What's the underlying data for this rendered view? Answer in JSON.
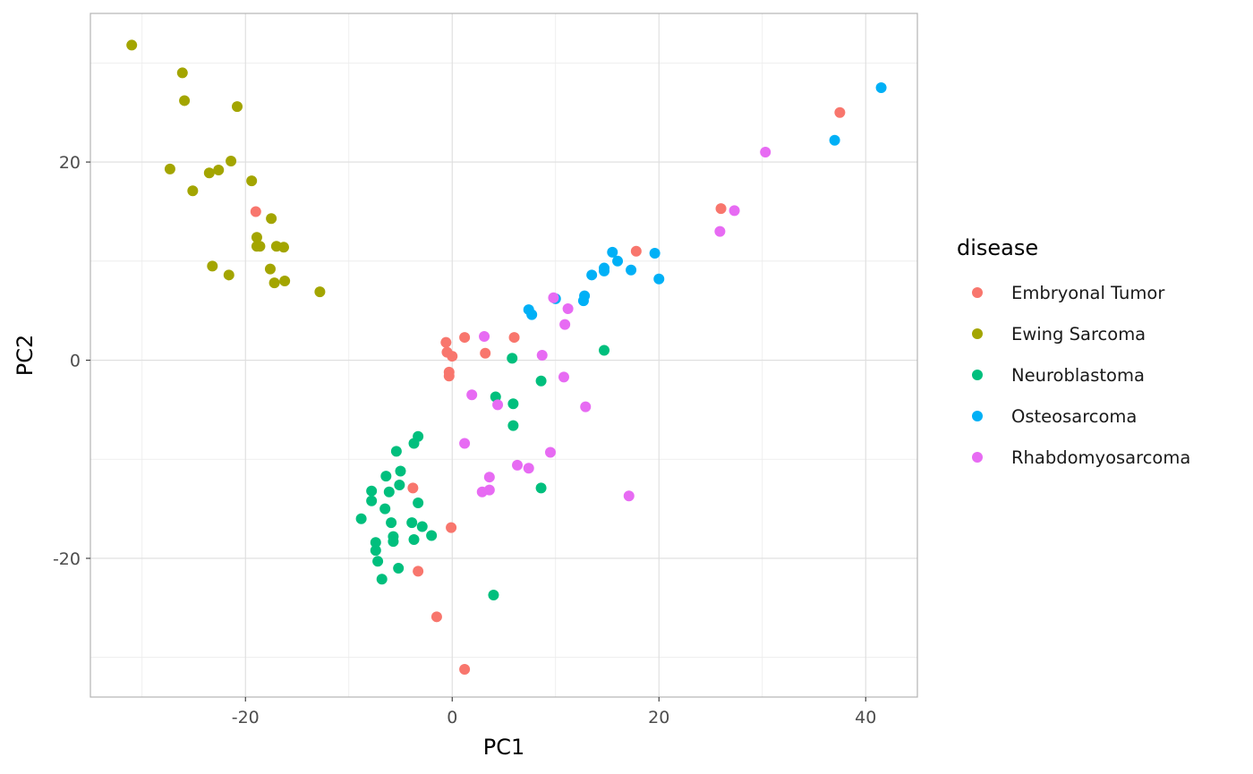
{
  "chart_data": {
    "type": "scatter",
    "xlabel": "PC1",
    "ylabel": "PC2",
    "xlim": [
      -35,
      45
    ],
    "ylim": [
      -34,
      35
    ],
    "x_ticks": [
      -20,
      0,
      20,
      40
    ],
    "y_ticks": [
      -20,
      0,
      20
    ],
    "x_tick_labels": [
      "-20",
      "0",
      "20",
      "40"
    ],
    "y_tick_labels": [
      "-20",
      "0",
      "20"
    ],
    "grid": true,
    "legend": {
      "title": "disease",
      "placement": "right"
    },
    "series": [
      {
        "name": "Embryonal Tumor",
        "color": "#F8766D",
        "points": [
          [
            37.5,
            25.0
          ],
          [
            26.0,
            15.3
          ],
          [
            17.8,
            11.0
          ],
          [
            -19.0,
            15.0
          ],
          [
            1.2,
            2.3
          ],
          [
            6.0,
            2.3
          ],
          [
            -0.6,
            1.8
          ],
          [
            -0.5,
            0.8
          ],
          [
            0.0,
            0.4
          ],
          [
            3.2,
            0.7
          ],
          [
            -0.3,
            -1.2
          ],
          [
            -0.3,
            -1.6
          ],
          [
            -3.8,
            -12.9
          ],
          [
            -0.1,
            -16.9
          ],
          [
            -3.3,
            -21.3
          ],
          [
            -1.5,
            -25.9
          ],
          [
            1.2,
            -31.2
          ]
        ]
      },
      {
        "name": "Ewing Sarcoma",
        "color": "#A3A500",
        "points": [
          [
            -31.0,
            31.8
          ],
          [
            -26.1,
            29.0
          ],
          [
            -25.9,
            26.2
          ],
          [
            -20.8,
            25.6
          ],
          [
            -27.3,
            19.3
          ],
          [
            -22.6,
            19.2
          ],
          [
            -23.5,
            18.9
          ],
          [
            -21.4,
            20.1
          ],
          [
            -25.1,
            17.1
          ],
          [
            -19.4,
            18.1
          ],
          [
            -17.5,
            14.3
          ],
          [
            -18.9,
            12.4
          ],
          [
            -18.9,
            11.5
          ],
          [
            -18.6,
            11.5
          ],
          [
            -17.0,
            11.5
          ],
          [
            -16.3,
            11.4
          ],
          [
            -23.2,
            9.5
          ],
          [
            -17.6,
            9.2
          ],
          [
            -21.6,
            8.6
          ],
          [
            -17.2,
            7.8
          ],
          [
            -16.2,
            8.0
          ],
          [
            -12.8,
            6.9
          ]
        ]
      },
      {
        "name": "Neuroblastoma",
        "color": "#00BF7D",
        "points": [
          [
            14.7,
            1.0
          ],
          [
            5.8,
            0.2
          ],
          [
            8.6,
            -2.1
          ],
          [
            4.2,
            -3.7
          ],
          [
            5.9,
            -4.4
          ],
          [
            5.9,
            -6.6
          ],
          [
            -3.3,
            -7.7
          ],
          [
            -3.7,
            -8.4
          ],
          [
            -5.4,
            -9.2
          ],
          [
            -5.0,
            -11.2
          ],
          [
            -6.4,
            -11.7
          ],
          [
            -5.1,
            -12.6
          ],
          [
            -7.8,
            -13.2
          ],
          [
            -6.1,
            -13.3
          ],
          [
            -7.8,
            -14.2
          ],
          [
            -3.3,
            -14.4
          ],
          [
            -6.5,
            -15.0
          ],
          [
            -8.8,
            -16.0
          ],
          [
            -5.9,
            -16.4
          ],
          [
            -3.9,
            -16.4
          ],
          [
            -2.9,
            -16.8
          ],
          [
            -2.0,
            -17.7
          ],
          [
            -5.7,
            -17.8
          ],
          [
            -5.7,
            -18.3
          ],
          [
            -3.7,
            -18.1
          ],
          [
            -7.4,
            -18.4
          ],
          [
            -7.4,
            -19.2
          ],
          [
            -7.2,
            -20.3
          ],
          [
            -5.2,
            -21.0
          ],
          [
            -6.8,
            -22.1
          ],
          [
            8.6,
            -12.9
          ],
          [
            4.0,
            -23.7
          ]
        ]
      },
      {
        "name": "Osteosarcoma",
        "color": "#00B0F6",
        "points": [
          [
            41.5,
            27.5
          ],
          [
            37.0,
            22.2
          ],
          [
            19.6,
            10.8
          ],
          [
            20.0,
            8.2
          ],
          [
            15.5,
            10.9
          ],
          [
            16.0,
            10.0
          ],
          [
            17.3,
            9.1
          ],
          [
            14.7,
            9.3
          ],
          [
            14.7,
            9.0
          ],
          [
            13.5,
            8.6
          ],
          [
            12.8,
            6.5
          ],
          [
            12.7,
            6.0
          ],
          [
            10.0,
            6.2
          ],
          [
            7.4,
            5.1
          ],
          [
            7.7,
            4.6
          ]
        ]
      },
      {
        "name": "Rhabdomyosarcoma",
        "color": "#E76BF3",
        "points": [
          [
            30.3,
            21.0
          ],
          [
            27.3,
            15.1
          ],
          [
            25.9,
            13.0
          ],
          [
            9.8,
            6.3
          ],
          [
            11.2,
            5.2
          ],
          [
            10.9,
            3.6
          ],
          [
            3.1,
            2.4
          ],
          [
            8.7,
            0.5
          ],
          [
            10.8,
            -1.7
          ],
          [
            1.9,
            -3.5
          ],
          [
            4.4,
            -4.5
          ],
          [
            12.9,
            -4.7
          ],
          [
            1.2,
            -8.4
          ],
          [
            9.5,
            -9.3
          ],
          [
            6.3,
            -10.6
          ],
          [
            7.4,
            -10.9
          ],
          [
            3.6,
            -11.8
          ],
          [
            2.9,
            -13.3
          ],
          [
            3.6,
            -13.1
          ],
          [
            17.1,
            -13.7
          ]
        ]
      }
    ]
  }
}
